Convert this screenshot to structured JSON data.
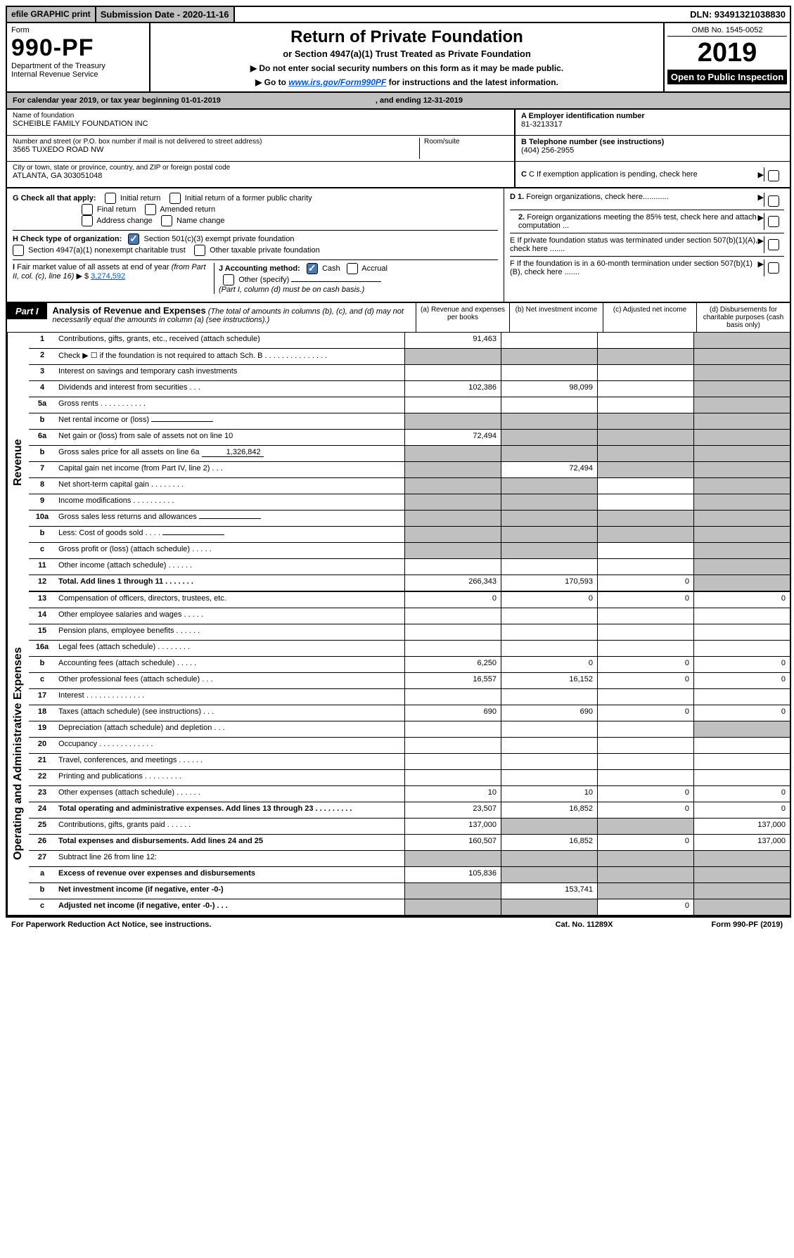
{
  "topbar": {
    "efile": "efile GRAPHIC print",
    "submission": "Submission Date - 2020-11-16",
    "dln": "DLN: 93491321038830"
  },
  "header": {
    "form_word": "Form",
    "form_num": "990-PF",
    "dept": "Department of the Treasury",
    "irs": "Internal Revenue Service",
    "title": "Return of Private Foundation",
    "subtitle": "or Section 4947(a)(1) Trust Treated as Private Foundation",
    "notice1": "▶ Do not enter social security numbers on this form as it may be made public.",
    "notice2_pre": "▶ Go to ",
    "notice2_link": "www.irs.gov/Form990PF",
    "notice2_post": " for instructions and the latest information.",
    "omb": "OMB No. 1545-0052",
    "year": "2019",
    "open": "Open to Public Inspection"
  },
  "period": {
    "cal": "For calendar year 2019, or tax year beginning 01-01-2019",
    "end": ", and ending 12-31-2019"
  },
  "entity": {
    "name_label": "Name of foundation",
    "name": "SCHEIBLE FAMILY FOUNDATION INC",
    "addr_label": "Number and street (or P.O. box number if mail is not delivered to street address)",
    "room_label": "Room/suite",
    "addr": "3565 TUXEDO ROAD NW",
    "city_label": "City or town, state or province, country, and ZIP or foreign postal code",
    "city": "ATLANTA, GA  303051048",
    "a_label": "A Employer identification number",
    "a_val": "81-3213317",
    "b_label": "B Telephone number (see instructions)",
    "b_val": "(404) 256-2955",
    "c_label": "C If exemption application is pending, check here"
  },
  "checks": {
    "g_label": "G Check all that apply:",
    "g_opts": [
      "Initial return",
      "Initial return of a former public charity",
      "Final return",
      "Amended return",
      "Address change",
      "Name change"
    ],
    "h_label": "H Check type of organization:",
    "h_opt1": "Section 501(c)(3) exempt private foundation",
    "h_opt2": "Section 4947(a)(1) nonexempt charitable trust",
    "h_opt3": "Other taxable private foundation",
    "i_label": "I Fair market value of all assets at end of year (from Part II, col. (c), line 16) ▶ $ ",
    "i_val": "3,274,592",
    "j_label": "J Accounting method:",
    "j_cash": "Cash",
    "j_accrual": "Accrual",
    "j_other": "Other (specify)",
    "j_note": "(Part I, column (d) must be on cash basis.)",
    "d1": "D 1. Foreign organizations, check here............",
    "d2": "2. Foreign organizations meeting the 85% test, check here and attach computation ...",
    "e": "E  If private foundation status was terminated under section 507(b)(1)(A), check here .......",
    "f": "F  If the foundation is in a 60-month termination under section 507(b)(1)(B), check here ......."
  },
  "part1": {
    "label": "Part I",
    "title": "Analysis of Revenue and Expenses",
    "title_note": "(The total of amounts in columns (b), (c), and (d) may not necessarily equal the amounts in column (a) (see instructions).)",
    "cols": {
      "a": "(a) Revenue and expenses per books",
      "b": "(b) Net investment income",
      "c": "(c) Adjusted net income",
      "d": "(d) Disbursements for charitable purposes (cash basis only)"
    }
  },
  "rows": [
    {
      "n": "1",
      "d": "Contributions, gifts, grants, etc., received (attach schedule)",
      "a": "91,463",
      "shade_d": true
    },
    {
      "n": "2",
      "d": "Check ▶ ☐ if the foundation is not required to attach Sch. B   .  .  .  .  .  .  .  .  .  .  .  .  .  .  .",
      "shade_a": true,
      "shade_b": true,
      "shade_c": true,
      "shade_d": true
    },
    {
      "n": "3",
      "d": "Interest on savings and temporary cash investments",
      "shade_d": true
    },
    {
      "n": "4",
      "d": "Dividends and interest from securities   .  .  .",
      "a": "102,386",
      "b": "98,099",
      "shade_d": true
    },
    {
      "n": "5a",
      "d": "Gross rents   .  .  .  .  .  .  .  .  .  .  .",
      "shade_d": true
    },
    {
      "n": "b",
      "d": "Net rental income or (loss)",
      "has_inline": true,
      "shade_a": true,
      "shade_b": true,
      "shade_c": true,
      "shade_d": true
    },
    {
      "n": "6a",
      "d": "Net gain or (loss) from sale of assets not on line 10",
      "a": "72,494",
      "shade_b": true,
      "shade_c": true,
      "shade_d": true
    },
    {
      "n": "b",
      "d": "Gross sales price for all assets on line 6a",
      "inline_val": "1,326,842",
      "has_inline": true,
      "shade_a": true,
      "shade_b": true,
      "shade_c": true,
      "shade_d": true
    },
    {
      "n": "7",
      "d": "Capital gain net income (from Part IV, line 2)   .  .  .",
      "shade_a": true,
      "b": "72,494",
      "shade_c": true,
      "shade_d": true
    },
    {
      "n": "8",
      "d": "Net short-term capital gain   .  .  .  .  .  .  .  .",
      "shade_a": true,
      "shade_b": true,
      "shade_d": true
    },
    {
      "n": "9",
      "d": "Income modifications  .  .  .  .  .  .  .  .  .  .",
      "shade_a": true,
      "shade_b": true,
      "shade_d": true
    },
    {
      "n": "10a",
      "d": "Gross sales less returns and allowances",
      "has_inline": true,
      "shade_a": true,
      "shade_b": true,
      "shade_c": true,
      "shade_d": true
    },
    {
      "n": "b",
      "d": "Less: Cost of goods sold   .  .  .  .",
      "has_inline": true,
      "shade_a": true,
      "shade_b": true,
      "shade_c": true,
      "shade_d": true
    },
    {
      "n": "c",
      "d": "Gross profit or (loss) (attach schedule)   .  .  .  .  .",
      "shade_a": true,
      "shade_b": true,
      "shade_d": true
    },
    {
      "n": "11",
      "d": "Other income (attach schedule)   .  .  .  .  .  .",
      "shade_d": true
    },
    {
      "n": "12",
      "d": "Total. Add lines 1 through 11   .  .  .  .  .  .  .",
      "bold": true,
      "a": "266,343",
      "b": "170,593",
      "c": "0",
      "shade_d": true
    },
    {
      "n": "13",
      "d": "Compensation of officers, directors, trustees, etc.",
      "a": "0",
      "b": "0",
      "c": "0",
      "v_d": "0"
    },
    {
      "n": "14",
      "d": "Other employee salaries and wages   .  .  .  .  ."
    },
    {
      "n": "15",
      "d": "Pension plans, employee benefits   .  .  .  .  .  ."
    },
    {
      "n": "16a",
      "d": "Legal fees (attach schedule)  .  .  .  .  .  .  .  ."
    },
    {
      "n": "b",
      "d": "Accounting fees (attach schedule)   .  .  .  .  .",
      "a": "6,250",
      "b": "0",
      "c": "0",
      "v_d": "0"
    },
    {
      "n": "c",
      "d": "Other professional fees (attach schedule)   .  .  .",
      "a": "16,557",
      "b": "16,152",
      "c": "0",
      "v_d": "0"
    },
    {
      "n": "17",
      "d": "Interest   .  .  .  .  .  .  .  .  .  .  .  .  .  ."
    },
    {
      "n": "18",
      "d": "Taxes (attach schedule) (see instructions)   .  .  .",
      "a": "690",
      "b": "690",
      "c": "0",
      "v_d": "0"
    },
    {
      "n": "19",
      "d": "Depreciation (attach schedule) and depletion   .  .  .",
      "shade_d": true
    },
    {
      "n": "20",
      "d": "Occupancy  .  .  .  .  .  .  .  .  .  .  .  .  ."
    },
    {
      "n": "21",
      "d": "Travel, conferences, and meetings  .  .  .  .  .  ."
    },
    {
      "n": "22",
      "d": "Printing and publications  .  .  .  .  .  .  .  .  ."
    },
    {
      "n": "23",
      "d": "Other expenses (attach schedule)   .  .  .  .  .  .",
      "a": "10",
      "b": "10",
      "c": "0",
      "v_d": "0"
    },
    {
      "n": "24",
      "d": "Total operating and administrative expenses. Add lines 13 through 23   .  .  .  .  .  .  .  .  .",
      "bold": true,
      "a": "23,507",
      "b": "16,852",
      "c": "0",
      "v_d": "0"
    },
    {
      "n": "25",
      "d": "Contributions, gifts, grants paid   .  .  .  .  .  .",
      "a": "137,000",
      "shade_b": true,
      "shade_c": true,
      "v_d": "137,000"
    },
    {
      "n": "26",
      "d": "Total expenses and disbursements. Add lines 24 and 25",
      "bold": true,
      "a": "160,507",
      "b": "16,852",
      "c": "0",
      "v_d": "137,000"
    },
    {
      "n": "27",
      "d": "Subtract line 26 from line 12:",
      "shade_a": true,
      "shade_b": true,
      "shade_c": true,
      "shade_d": true
    },
    {
      "n": "a",
      "d": "Excess of revenue over expenses and disbursements",
      "bold": true,
      "a": "105,836",
      "shade_b": true,
      "shade_c": true,
      "shade_d": true
    },
    {
      "n": "b",
      "d": "Net investment income (if negative, enter -0-)",
      "bold": true,
      "shade_a": true,
      "b": "153,741",
      "shade_c": true,
      "shade_d": true
    },
    {
      "n": "c",
      "d": "Adjusted net income (if negative, enter -0-)   .  .  .",
      "bold": true,
      "shade_a": true,
      "shade_b": true,
      "c": "0",
      "shade_d": true
    }
  ],
  "sections": {
    "revenue": "Revenue",
    "expenses": "Operating and Administrative Expenses"
  },
  "bottom": {
    "left": "For Paperwork Reduction Act Notice, see instructions.",
    "mid": "Cat. No. 11289X",
    "right": "Form 990-PF (2019)"
  }
}
